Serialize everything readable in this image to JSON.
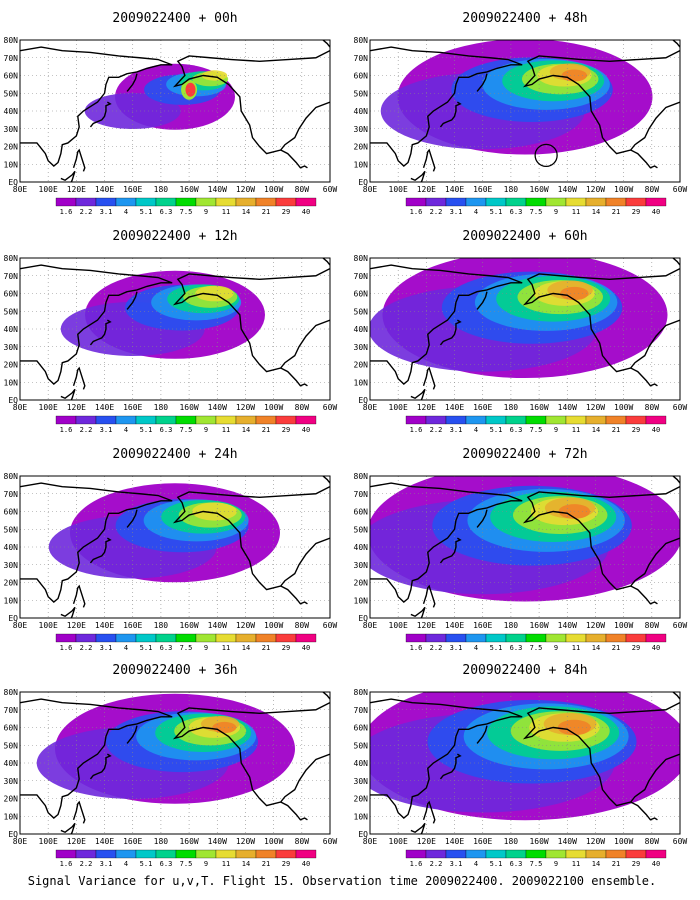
{
  "caption": "Signal Variance for u,v,T. Flight 15. Observation time 2009022400. 2009022100 ensemble.",
  "colors": {
    "background": "#ffffff",
    "grid": "#888888",
    "coast": "#000000",
    "scale": [
      "#a000c8",
      "#6e28dc",
      "#2850f0",
      "#1e96f0",
      "#00c8c8",
      "#00d28c",
      "#00dc00",
      "#a0e632",
      "#e6dc32",
      "#e6af2d",
      "#f08228",
      "#fa3c3c",
      "#f00082"
    ]
  },
  "map": {
    "domain": "North Pacific, 80E to 60W, EQ to 80N",
    "lon_labels": [
      "80E",
      "100E",
      "120E",
      "140E",
      "160E",
      "180",
      "160W",
      "140W",
      "120W",
      "100W",
      "80W",
      "60W"
    ],
    "lat_labels": [
      "EQ",
      "10N",
      "20N",
      "30N",
      "40N",
      "50N",
      "60N",
      "70N",
      "80N"
    ]
  },
  "colorbar": {
    "levels": [
      "1.6",
      "2.2",
      "3.1",
      "4",
      "5.1",
      "6.3",
      "7.5",
      "9",
      "11",
      "14",
      "21",
      "29",
      "40"
    ]
  },
  "panels": [
    {
      "title": "2009022400 + 00h",
      "lead_hours": 0,
      "mean_intensity": 0.15
    },
    {
      "title": "2009022400 + 12h",
      "lead_hours": 12,
      "mean_intensity": 0.35
    },
    {
      "title": "2009022400 + 24h",
      "lead_hours": 24,
      "mean_intensity": 0.45
    },
    {
      "title": "2009022400 + 36h",
      "lead_hours": 36,
      "mean_intensity": 0.55
    },
    {
      "title": "2009022400 + 48h",
      "lead_hours": 48,
      "mean_intensity": 0.6,
      "annotation": "circle"
    },
    {
      "title": "2009022400 + 60h",
      "lead_hours": 60,
      "mean_intensity": 0.7
    },
    {
      "title": "2009022400 + 72h",
      "lead_hours": 72,
      "mean_intensity": 0.8
    },
    {
      "title": "2009022400 + 84h",
      "lead_hours": 84,
      "mean_intensity": 0.85
    }
  ]
}
